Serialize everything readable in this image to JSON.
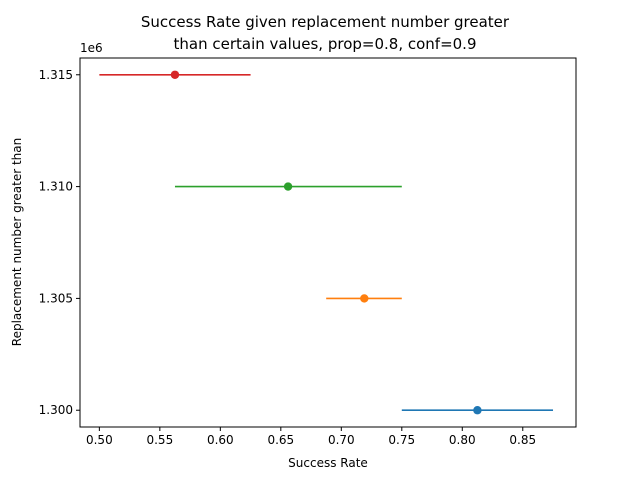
{
  "chart_data": {
    "type": "scatter",
    "title_lines": [
      "Success Rate given replacement number greater",
      "than certain values, prop=0.8, conf=0.9"
    ],
    "xlabel": "Success Rate",
    "ylabel": "Replacement number greater than",
    "y_offset_label": "1e6",
    "xlim": [
      0.484,
      0.894
    ],
    "ylim": [
      1.29925,
      1.31575
    ],
    "x_ticks": [
      0.5,
      0.55,
      0.6,
      0.65,
      0.7,
      0.75,
      0.8,
      0.85
    ],
    "x_tick_labels": [
      "0.50",
      "0.55",
      "0.60",
      "0.65",
      "0.70",
      "0.75",
      "0.80",
      "0.85"
    ],
    "y_ticks": [
      1.3,
      1.305,
      1.31,
      1.315
    ],
    "y_tick_labels": [
      "1.300",
      "1.305",
      "1.310",
      "1.315"
    ],
    "grid": false,
    "points": [
      {
        "y": 1.3,
        "x": 0.8125,
        "x_low": 0.75,
        "x_high": 0.875,
        "color": "#1f77b4"
      },
      {
        "y": 1.305,
        "x": 0.719,
        "x_low": 0.6875,
        "x_high": 0.75,
        "color": "#ff7f0e"
      },
      {
        "y": 1.31,
        "x": 0.656,
        "x_low": 0.5625,
        "x_high": 0.75,
        "color": "#2ca02c"
      },
      {
        "y": 1.315,
        "x": 0.5625,
        "x_low": 0.5,
        "x_high": 0.625,
        "color": "#d62728"
      }
    ]
  }
}
